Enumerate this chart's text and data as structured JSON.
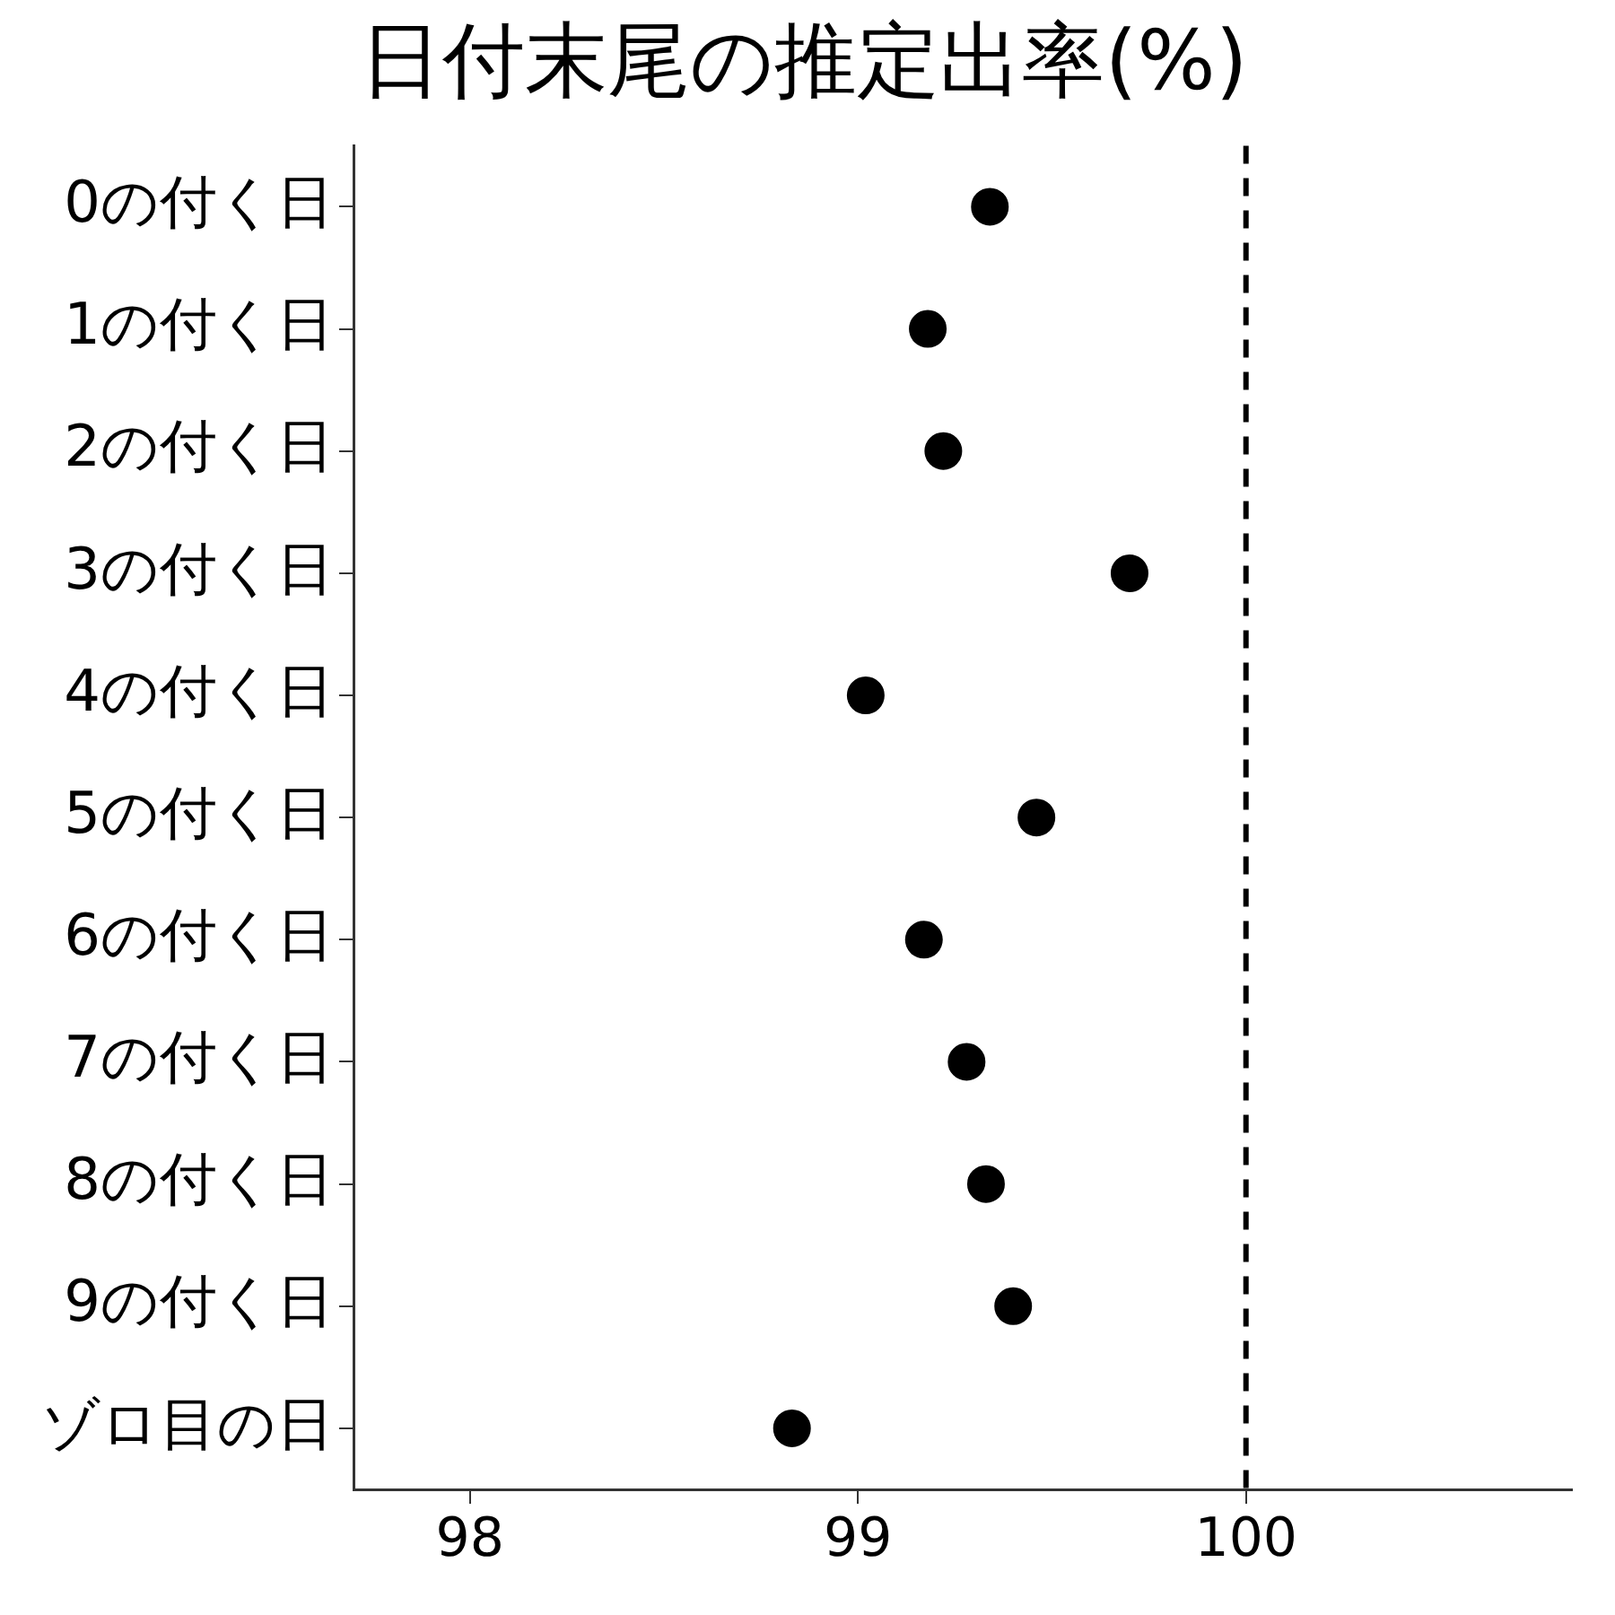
{
  "chart_data": {
    "type": "scatter",
    "title": "日付末尾の推定出率(%)",
    "categories": [
      "0の付く日",
      "1の付く日",
      "2の付く日",
      "3の付く日",
      "4の付く日",
      "5の付く日",
      "6の付く日",
      "7の付く日",
      "8の付く日",
      "9の付く日",
      "ゾロ目の日"
    ],
    "orientation": "horizontal",
    "series": [
      {
        "color": "#000000",
        "values": [
          99.34,
          99.18,
          99.22,
          99.7,
          99.02,
          99.46,
          99.17,
          99.28,
          99.33,
          99.4,
          98.83
        ]
      }
    ],
    "xlim": [
      97.7,
      100.84
    ],
    "xticks": [
      98,
      99,
      100
    ],
    "ref_lines": [
      {
        "axis": "x",
        "value": 100,
        "color": "#000000",
        "line_style": "dashed"
      }
    ],
    "grid": false,
    "legend": false,
    "marker": "circle"
  }
}
